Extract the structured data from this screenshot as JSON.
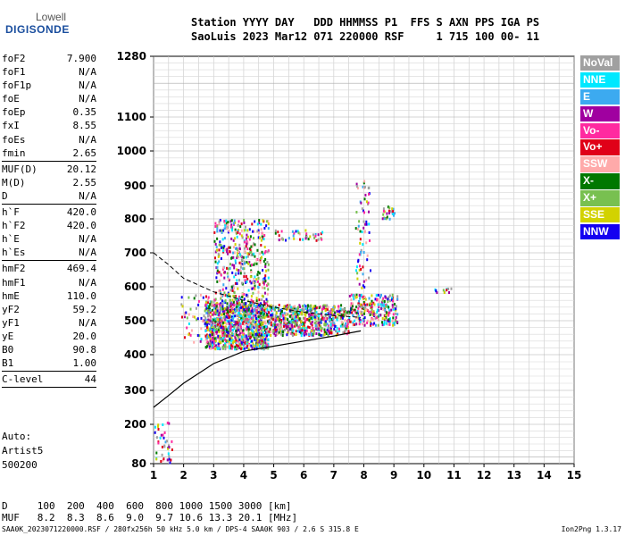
{
  "logo": {
    "line1": "Lowell",
    "line2": "DIGISONDE"
  },
  "header": {
    "line1": "Station YYYY DAY   DDD HHMMSS P1  FFS S AXN PPS IGA PS",
    "line2": "SaoLuis 2023 Mar12 071 220000 RSF     1 715 100 00- 11"
  },
  "params": [
    {
      "label": "foF2",
      "value": "7.900"
    },
    {
      "label": "foF1",
      "value": "N/A"
    },
    {
      "label": "foF1p",
      "value": "N/A"
    },
    {
      "label": "foE",
      "value": "N/A"
    },
    {
      "label": "foEp",
      "value": "0.35"
    },
    {
      "label": "fxI",
      "value": "8.55"
    },
    {
      "label": "foEs",
      "value": "N/A"
    },
    {
      "label": "fmin",
      "value": "2.65"
    },
    {
      "sep": true
    },
    {
      "label": "MUF(D)",
      "value": "20.12"
    },
    {
      "label": "M(D)",
      "value": "2.55"
    },
    {
      "label": "D",
      "value": "N/A"
    },
    {
      "sep": true
    },
    {
      "label": "h`F",
      "value": "420.0"
    },
    {
      "label": "h`F2",
      "value": "420.0"
    },
    {
      "label": "h`E",
      "value": "N/A"
    },
    {
      "label": "h`Es",
      "value": "N/A"
    },
    {
      "sep": true
    },
    {
      "label": "hmF2",
      "value": "469.4"
    },
    {
      "label": "hmF1",
      "value": "N/A"
    },
    {
      "label": "hmE",
      "value": "110.0"
    },
    {
      "label": "yF2",
      "value": "59.2"
    },
    {
      "label": "yF1",
      "value": "N/A"
    },
    {
      "label": "yE",
      "value": "20.0"
    },
    {
      "label": "B0",
      "value": "90.8"
    },
    {
      "label": "B1",
      "value": "1.00"
    },
    {
      "sep": true
    },
    {
      "label": "C-level",
      "value": "44"
    },
    {
      "sep": true
    }
  ],
  "auto": {
    "line1": "Auto:",
    "line2": "Artist5",
    "line3": "500200"
  },
  "legend": [
    {
      "label": "NoVal",
      "color": "#a0a0a0"
    },
    {
      "label": "NNE",
      "color": "#00e8ff"
    },
    {
      "label": "E",
      "color": "#3caaf0"
    },
    {
      "label": "W",
      "color": "#a000a0"
    },
    {
      "label": "Vo-",
      "color": "#ff2aa0"
    },
    {
      "label": "Vo+",
      "color": "#e00018"
    },
    {
      "label": "SSW",
      "color": "#ffaaaa"
    },
    {
      "label": "X-",
      "color": "#007800"
    },
    {
      "label": "X+",
      "color": "#78c050"
    },
    {
      "label": "SSE",
      "color": "#d2d200"
    },
    {
      "label": "NNW",
      "color": "#1400f0"
    }
  ],
  "footer": {
    "line1": "D     100  200  400  600  800 1000 1500 3000 [km]",
    "line2": "MUF   8.2  8.3  8.6  9.0  9.7 10.6 13.3 20.1 [MHz]",
    "file_info": "SAA0K_2023071220000.RSF / 280fx256h 50 kHz 5.0 km / DPS-4 SAA0K 903 / 2.6 S 315.8 E",
    "version": "Ion2Png 1.3.17"
  },
  "chart_data": {
    "type": "scatter",
    "xlim": [
      1,
      15
    ],
    "ylim": [
      80,
      1280
    ],
    "x_ticks": [
      "1",
      "2",
      "3",
      "4",
      "5",
      "6",
      "7",
      "8",
      "9",
      "10",
      "11",
      "12",
      "13",
      "14",
      "15"
    ],
    "y_ticks": [
      "80",
      "200",
      "300",
      "400",
      "500",
      "600",
      "700",
      "800",
      "900",
      "1000",
      "1100",
      "1280"
    ],
    "grid": true,
    "profile": {
      "x": [
        1.0,
        1.5,
        2.0,
        3.0,
        4.0,
        5.0,
        6.0,
        7.0,
        7.9
      ],
      "y": [
        250,
        285,
        320,
        375,
        410,
        425,
        440,
        455,
        470
      ]
    },
    "model_curve": {
      "x": [
        1.0,
        1.5,
        2.0,
        2.5,
        3.0,
        4.0,
        5.0,
        6.0,
        7.0,
        7.9
      ],
      "y": [
        700,
        665,
        625,
        605,
        585,
        560,
        540,
        525,
        515,
        510
      ]
    },
    "clusters": [
      {
        "x": [
          2.7,
          4.8
        ],
        "y": [
          420,
          560
        ],
        "n": 1100
      },
      {
        "x": [
          3.0,
          4.8
        ],
        "y": [
          560,
          800
        ],
        "n": 420
      },
      {
        "x": [
          4.8,
          7.5
        ],
        "y": [
          460,
          550
        ],
        "n": 650
      },
      {
        "x": [
          7.5,
          9.1
        ],
        "y": [
          490,
          580
        ],
        "n": 260
      },
      {
        "x": [
          5.0,
          6.6
        ],
        "y": [
          740,
          770
        ],
        "n": 40
      },
      {
        "x": [
          1.9,
          3.0
        ],
        "y": [
          440,
          580
        ],
        "n": 70
      },
      {
        "x": [
          7.7,
          8.2
        ],
        "y": [
          600,
          920
        ],
        "n": 70
      },
      {
        "x": [
          8.6,
          9.0
        ],
        "y": [
          800,
          840
        ],
        "n": 25
      },
      {
        "x": [
          1.0,
          1.6
        ],
        "y": [
          80,
          215
        ],
        "n": 40
      },
      {
        "x": [
          10.2,
          11.0
        ],
        "y": [
          585,
          600
        ],
        "n": 12
      }
    ]
  }
}
